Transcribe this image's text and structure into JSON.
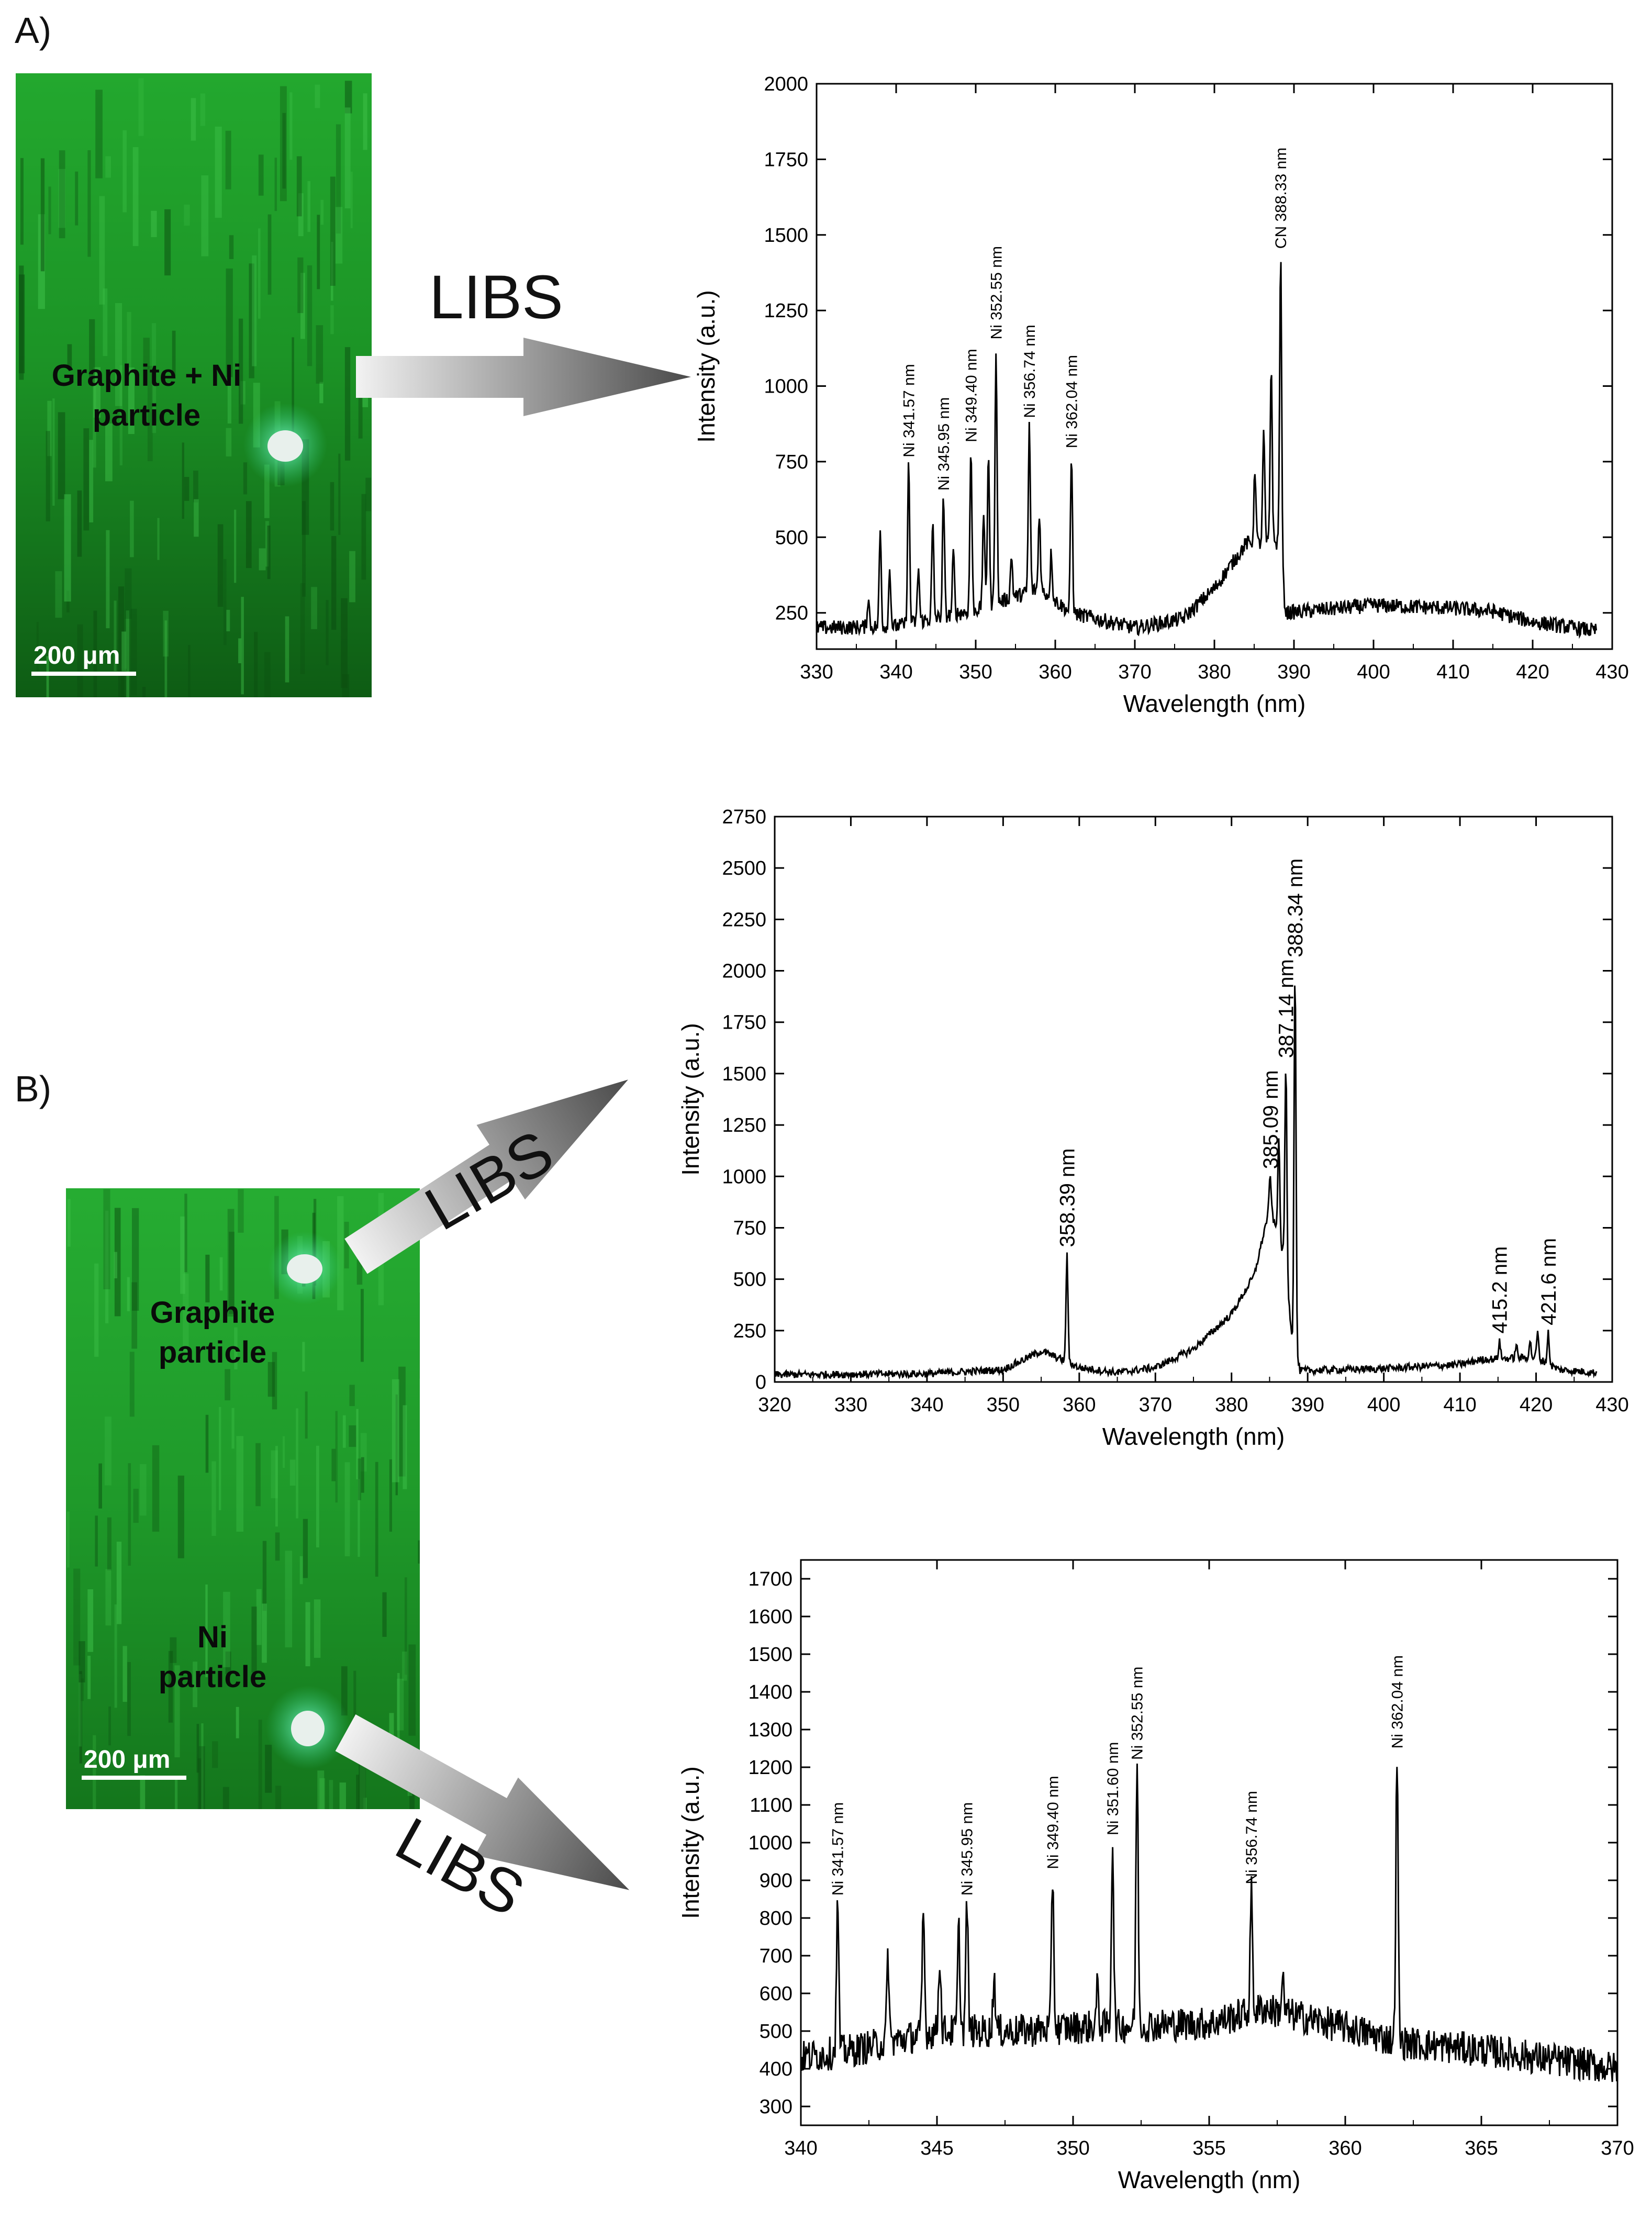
{
  "panels": {
    "a_label": "A)",
    "b_label": "B)"
  },
  "micrographs": {
    "a": {
      "label_line1": "Graphite + Ni",
      "label_line2": "particle",
      "scale_bar": "200 μm"
    },
    "b": {
      "graphite_line1": "Graphite",
      "graphite_line2": "particle",
      "ni_line1": "Ni",
      "ni_line2": "particle",
      "scale_bar": "200 μm"
    }
  },
  "libs_labels": {
    "a": "LIBS",
    "b_top": "LIBS",
    "b_bottom": "LIBS"
  },
  "colors": {
    "micrograph_green": "#1b9e2a",
    "particle": "#e8f0ec",
    "arrow_light": "#f2f2f2",
    "arrow_dark": "#4a4a4a",
    "spectrum": "#000000"
  },
  "chart_data": [
    {
      "type": "line",
      "xlabel": "Wavelength (nm)",
      "ylabel": "Intensity (a.u.)",
      "xlim": [
        330,
        430
      ],
      "ylim": [
        130,
        2000
      ],
      "xticks": [
        330,
        340,
        350,
        360,
        370,
        380,
        390,
        400,
        410,
        420,
        430
      ],
      "yticks": [
        250,
        500,
        750,
        1000,
        1250,
        1500,
        1750,
        2000
      ],
      "baseline": [
        [
          330,
          200
        ],
        [
          340,
          205
        ],
        [
          350,
          260
        ],
        [
          358,
          330
        ],
        [
          362,
          250
        ],
        [
          370,
          200
        ],
        [
          376,
          230
        ],
        [
          380,
          330
        ],
        [
          384,
          480
        ],
        [
          388,
          480
        ],
        [
          389,
          250
        ],
        [
          400,
          275
        ],
        [
          410,
          265
        ],
        [
          415,
          255
        ],
        [
          420,
          220
        ],
        [
          428,
          190
        ]
      ],
      "peaks": [
        [
          336.5,
          300
        ],
        [
          338.0,
          520
        ],
        [
          339.2,
          400
        ],
        [
          341.57,
          740
        ],
        [
          342.8,
          400
        ],
        [
          344.6,
          540
        ],
        [
          345.95,
          630
        ],
        [
          347.2,
          450
        ],
        [
          349.4,
          790
        ],
        [
          351.0,
          590
        ],
        [
          351.6,
          790
        ],
        [
          352.55,
          1130
        ],
        [
          354.5,
          440
        ],
        [
          356.74,
          870
        ],
        [
          358.0,
          580
        ],
        [
          359.5,
          450
        ],
        [
          362.04,
          770
        ],
        [
          385.1,
          730
        ],
        [
          386.2,
          850
        ],
        [
          387.14,
          1075
        ],
        [
          388.33,
          1430
        ]
      ],
      "annotations": [
        {
          "x": 341.57,
          "label": "Ni 341.57 nm"
        },
        {
          "x": 345.95,
          "label": "Ni 345.95 nm"
        },
        {
          "x": 349.4,
          "label": "Ni 349.40 nm"
        },
        {
          "x": 352.55,
          "label": "Ni 352.55 nm"
        },
        {
          "x": 356.74,
          "label": "Ni 356.74 nm"
        },
        {
          "x": 362.04,
          "label": "Ni 362.04 nm"
        },
        {
          "x": 388.33,
          "label": "CN 388.33 nm"
        }
      ]
    },
    {
      "type": "line",
      "xlabel": "Wavelength (nm)",
      "ylabel": "Intensity (a.u.)",
      "xlim": [
        320,
        430
      ],
      "ylim": [
        0,
        2750
      ],
      "xticks": [
        320,
        330,
        340,
        350,
        360,
        370,
        380,
        390,
        400,
        410,
        420,
        430
      ],
      "yticks": [
        0,
        250,
        500,
        750,
        1000,
        1250,
        1500,
        1750,
        2000,
        2250,
        2500,
        2750
      ],
      "baseline": [
        [
          320,
          35
        ],
        [
          340,
          40
        ],
        [
          350,
          60
        ],
        [
          355,
          150
        ],
        [
          357,
          120
        ],
        [
          360,
          70
        ],
        [
          365,
          45
        ],
        [
          370,
          70
        ],
        [
          375,
          160
        ],
        [
          380,
          330
        ],
        [
          383,
          520
        ],
        [
          385,
          850
        ],
        [
          387,
          600
        ],
        [
          388,
          200
        ],
        [
          389,
          55
        ],
        [
          400,
          65
        ],
        [
          410,
          85
        ],
        [
          413,
          110
        ],
        [
          420,
          120
        ],
        [
          423,
          60
        ],
        [
          428,
          45
        ]
      ],
      "peaks": [
        [
          358.39,
          620
        ],
        [
          385.09,
          1000
        ],
        [
          386.2,
          1190
        ],
        [
          387.14,
          1540
        ],
        [
          388.34,
          2030
        ],
        [
          415.2,
          200
        ],
        [
          417.4,
          180
        ],
        [
          419.2,
          200
        ],
        [
          420.2,
          240
        ],
        [
          421.6,
          240
        ]
      ],
      "annotations": [
        {
          "x": 358.39,
          "label": "358.39 nm"
        },
        {
          "x": 385.09,
          "label": "385.09 nm"
        },
        {
          "x": 387.14,
          "label": "387.14 nm"
        },
        {
          "x": 388.34,
          "label": "388.34 nm"
        },
        {
          "x": 415.2,
          "label": "415.2 nm"
        },
        {
          "x": 421.6,
          "label": "421.6 nm"
        }
      ]
    },
    {
      "type": "line",
      "xlabel": "Wavelength (nm)",
      "ylabel": "Intensity (a.u.)",
      "xlim": [
        340,
        370
      ],
      "ylim": [
        250,
        1750
      ],
      "xticks": [
        340,
        345,
        350,
        355,
        360,
        365,
        370
      ],
      "yticks": [
        300,
        400,
        500,
        600,
        700,
        800,
        900,
        1000,
        1100,
        1200,
        1300,
        1400,
        1500,
        1600,
        1700
      ],
      "baseline": [
        [
          340,
          430
        ],
        [
          342,
          450
        ],
        [
          345,
          500
        ],
        [
          348,
          500
        ],
        [
          350,
          510
        ],
        [
          355,
          520
        ],
        [
          357,
          560
        ],
        [
          360,
          510
        ],
        [
          362,
          470
        ],
        [
          365,
          450
        ],
        [
          370,
          400
        ]
      ],
      "peaks": [
        [
          341.35,
          840
        ],
        [
          343.2,
          700
        ],
        [
          344.5,
          820
        ],
        [
          345.1,
          700
        ],
        [
          345.8,
          770
        ],
        [
          346.1,
          840
        ],
        [
          347.1,
          650
        ],
        [
          349.25,
          910
        ],
        [
          350.9,
          620
        ],
        [
          351.45,
          1000
        ],
        [
          352.35,
          1200
        ],
        [
          356.55,
          870
        ],
        [
          357.7,
          640
        ],
        [
          361.9,
          1230
        ]
      ],
      "annotations": [
        {
          "x": 341.35,
          "label": "Ni 341.57 nm"
        },
        {
          "x": 346.1,
          "label": "Ni 345.95 nm"
        },
        {
          "x": 349.25,
          "label": "Ni 349.40 nm"
        },
        {
          "x": 351.45,
          "label": "Ni 351.60 nm"
        },
        {
          "x": 352.35,
          "label": "Ni 352.55 nm"
        },
        {
          "x": 356.55,
          "label": "Ni 356.74 nm"
        },
        {
          "x": 361.9,
          "label": "Ni 362.04 nm"
        }
      ]
    }
  ]
}
